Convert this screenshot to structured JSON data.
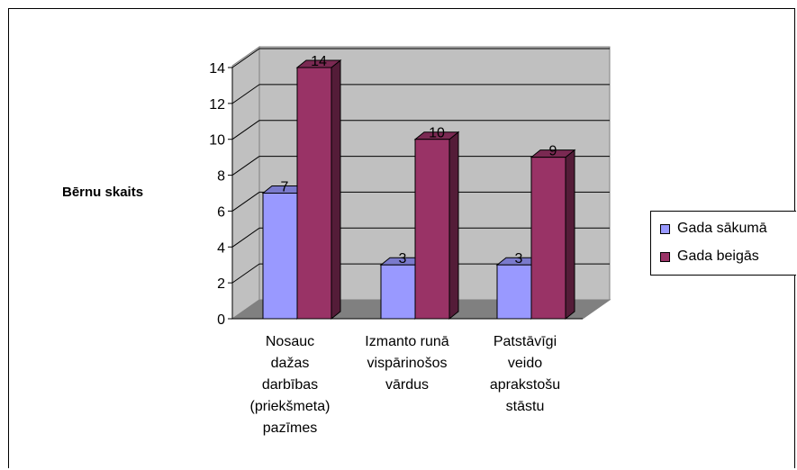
{
  "chart_data": {
    "type": "bar",
    "ylabel": "Bērnu skaits",
    "ylim": [
      0,
      14
    ],
    "yticks": [
      "0",
      "2",
      "4",
      "6",
      "8",
      "10",
      "12",
      "14"
    ],
    "categories": [
      [
        "Nosauc",
        "dažas",
        "darbības",
        "(priekšmeta)",
        "pazīmes"
      ],
      [
        "Izmanto runā",
        "vispārinošos",
        "vārdus"
      ],
      [
        "Patstāvīgi",
        "veido",
        "aprakstošu",
        "stāstu"
      ]
    ],
    "series": [
      {
        "name": "Gada sākumā",
        "values": [
          7,
          3,
          3
        ],
        "color": "#9999ff"
      },
      {
        "name": "Gada beigās",
        "values": [
          14,
          10,
          9
        ],
        "color": "#993366"
      }
    ],
    "grid": true,
    "legend": "right"
  }
}
